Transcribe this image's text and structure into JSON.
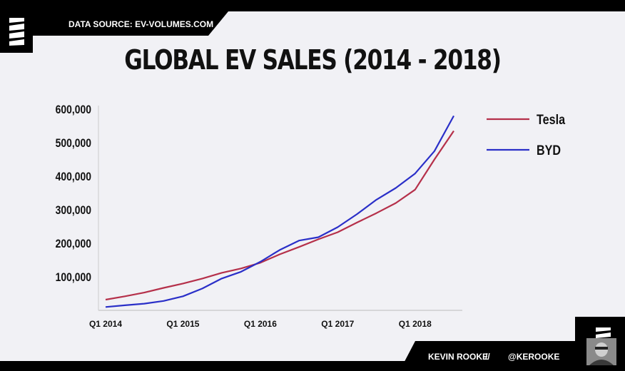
{
  "header": {
    "source_text": "DATA SOURCE: EV-VOLUMES.COM"
  },
  "footer": {
    "author": "KEVIN ROOKE",
    "separator": "//",
    "handle": "@KEROOKE"
  },
  "colors": {
    "tesla": "#b5304a",
    "byd": "#2a2fc8",
    "background": "#f1f1f5",
    "bar": "#000000"
  },
  "chart_data": {
    "type": "line",
    "title": "GLOBAL EV SALES (2014 - 2018)",
    "xlabel": "",
    "ylabel": "",
    "x_tick_labels": [
      "Q1 2014",
      "Q1 2015",
      "Q1 2016",
      "Q1 2017",
      "Q1 2018"
    ],
    "x_tick_index": [
      0,
      4,
      8,
      12,
      16
    ],
    "ylim": [
      0,
      600000
    ],
    "y_ticks": [
      100000,
      200000,
      300000,
      400000,
      500000,
      600000
    ],
    "y_tick_labels": [
      "100,000",
      "200,000",
      "300,000",
      "400,000",
      "500,000",
      "600,000"
    ],
    "grid": false,
    "legend_position": "right",
    "series": [
      {
        "name": "Tesla",
        "color": "#b5304a",
        "values": [
          32000,
          42000,
          53000,
          67000,
          80000,
          95000,
          112000,
          125000,
          142000,
          167000,
          189000,
          212000,
          233000,
          262000,
          290000,
          320000,
          360000,
          450000,
          535000
        ]
      },
      {
        "name": "BYD",
        "color": "#2a2fc8",
        "values": [
          10000,
          15000,
          20000,
          28000,
          42000,
          65000,
          95000,
          115000,
          145000,
          180000,
          208000,
          218000,
          248000,
          287000,
          330000,
          365000,
          408000,
          475000,
          580000
        ]
      }
    ]
  }
}
